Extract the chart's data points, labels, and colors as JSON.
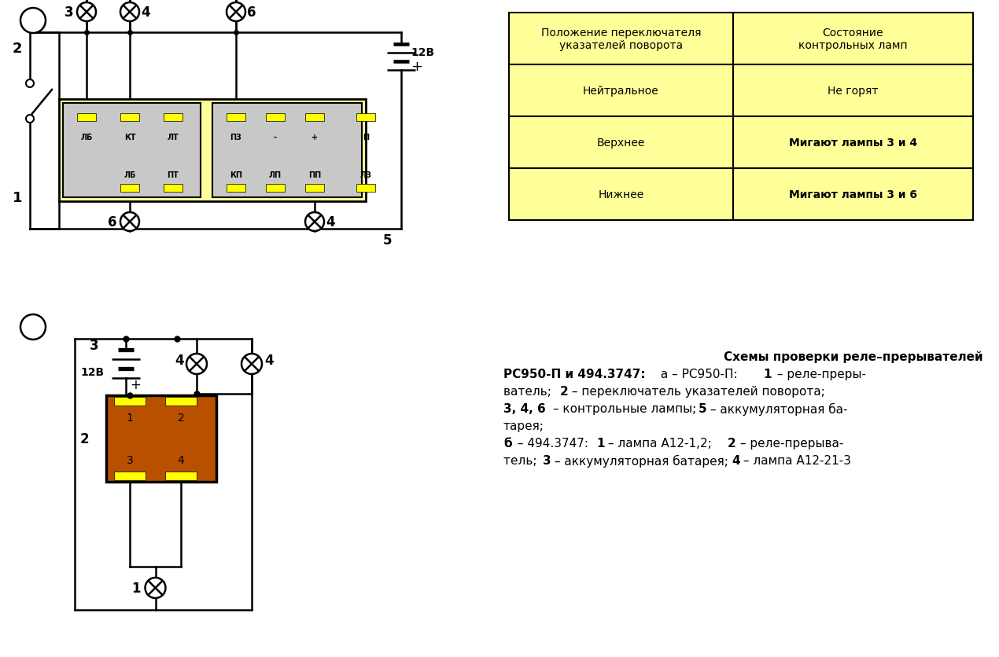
{
  "bg_color": "#ffffff",
  "yellow_fill": "#ffff99",
  "yellow_pin": "#ffff00",
  "relay_gray": "#c8c8c8",
  "relay_brown": "#b85000",
  "label_a": "а",
  "label_b": "б",
  "table_col1_header": "Положение переключателя\nуказателей поворота",
  "table_col2_header": "Состояние\nконтрольных ламп",
  "table_rows": [
    [
      "Нейтральное",
      "Не горят",
      false
    ],
    [
      "Верхнее",
      "Мигают лампы 3 и 4",
      true
    ],
    [
      "Нижнее",
      "Мигают лампы 3 и 6",
      true
    ]
  ],
  "relay_pins_top_left": [
    "ЛБ",
    "КТ",
    "ЛТ"
  ],
  "relay_pins_bot_left": [
    "ЛБ",
    "ПТ"
  ],
  "relay_pins_top_right": [
    "П3",
    "-",
    "+",
    "П"
  ],
  "relay_pins_bot_right": [
    "КП",
    "ЛП",
    "ПП",
    "ЛЗ"
  ],
  "caption_line1": "Схемы проверки реле–прерывателей",
  "caption_line2_bold": "РС950-П и 494.3747:",
  "caption_line2_normal": " а – РС950-П: ",
  "caption_line2_bold2": "1",
  "caption_line2_normal2": " – реле-преры-",
  "caption_lines_rest": [
    [
      "ватель; ",
      "2",
      " – переключатель указателей поворота;"
    ],
    [
      "3, 4, 6",
      " – контрольные лампы; ",
      "5",
      " – аккумуляторная ба-"
    ],
    [
      "тарея;",
      "",
      "",
      ""
    ],
    [
      "б",
      " – 494.3747: ",
      "1",
      " – лампа А12-1,2;  ",
      "2",
      " – реле-прерыва-"
    ],
    [
      "тель; ",
      "3",
      " – аккумуляторная батарея; ",
      "4",
      " – лампа А12-21-3"
    ]
  ]
}
